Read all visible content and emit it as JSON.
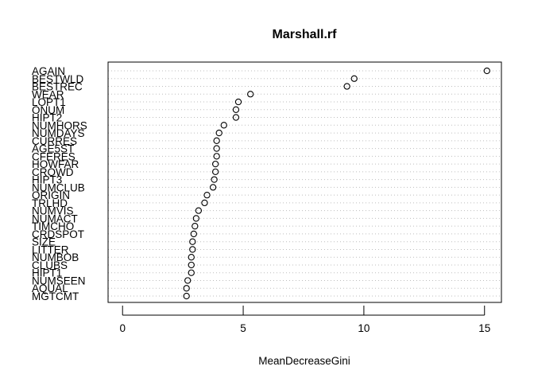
{
  "chart_data": {
    "type": "scatter",
    "title": "Marshall.rf",
    "xlabel": "MeanDecreaseGini",
    "ylabel": "",
    "xlim": [
      -0.6,
      15.7
    ],
    "xticks": [
      0,
      5,
      10,
      15
    ],
    "grid": "dotted horizontal lines per variable",
    "legend": "none",
    "categories": [
      "AGAIN",
      "BESTWLD",
      "BESTREC",
      "WEAR",
      "LOPT1",
      "ONUM",
      "HIPT2",
      "NUMHORS",
      "NUMDAYS",
      "CURRES",
      "AGE5ST",
      "CFERES",
      "HOWFAR",
      "CROWD",
      "HIPT3",
      "NUMCLUB",
      "ORIGIN",
      "TRLHD",
      "NUMVIS",
      "NUMACT",
      "TIMCHO",
      "CRDSPOT",
      "SIZE",
      "LITTER",
      "NUMBOB",
      "CLUBS",
      "HIPT1",
      "NUMSEEN",
      "AQUAL",
      "MGTCMT"
    ],
    "values": [
      15.1,
      9.6,
      9.3,
      5.3,
      4.8,
      4.7,
      4.7,
      4.2,
      4.0,
      3.9,
      3.9,
      3.9,
      3.85,
      3.85,
      3.8,
      3.75,
      3.5,
      3.4,
      3.15,
      3.05,
      3.0,
      2.95,
      2.9,
      2.9,
      2.85,
      2.85,
      2.85,
      2.7,
      2.65,
      2.65
    ]
  }
}
